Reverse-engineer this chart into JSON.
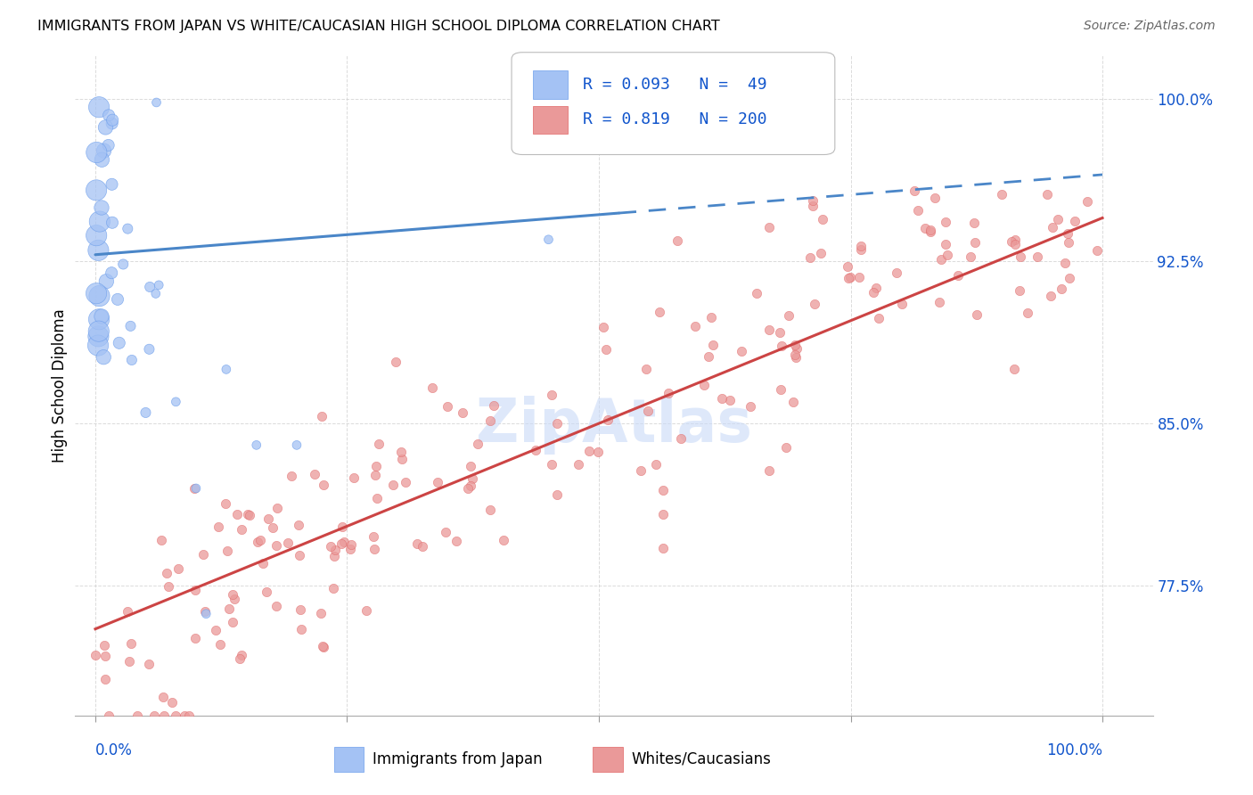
{
  "title": "IMMIGRANTS FROM JAPAN VS WHITE/CAUCASIAN HIGH SCHOOL DIPLOMA CORRELATION CHART",
  "source": "Source: ZipAtlas.com",
  "ylabel": "High School Diploma",
  "ytick_labels": [
    "77.5%",
    "85.0%",
    "92.5%",
    "100.0%"
  ],
  "ytick_values": [
    0.775,
    0.85,
    0.925,
    1.0
  ],
  "color_blue": "#a4c2f4",
  "color_blue_edge": "#6d9eeb",
  "color_blue_line": "#4a86c8",
  "color_pink": "#ea9999",
  "color_pink_edge": "#e06666",
  "color_pink_line": "#cc4444",
  "color_axis_label": "#1155cc",
  "color_grid": "#cccccc",
  "watermark_color": "#c9daf8",
  "legend_box_color": "#f3f3f3",
  "legend_box_edge": "#cccccc",
  "xlim": [
    -0.02,
    1.05
  ],
  "ylim": [
    0.715,
    1.02
  ],
  "japan_blue_line_solid_end": 0.52,
  "japan_line_start_y": 0.928,
  "japan_line_end_y": 0.965,
  "white_line_start_y": 0.755,
  "white_line_end_y": 0.945
}
